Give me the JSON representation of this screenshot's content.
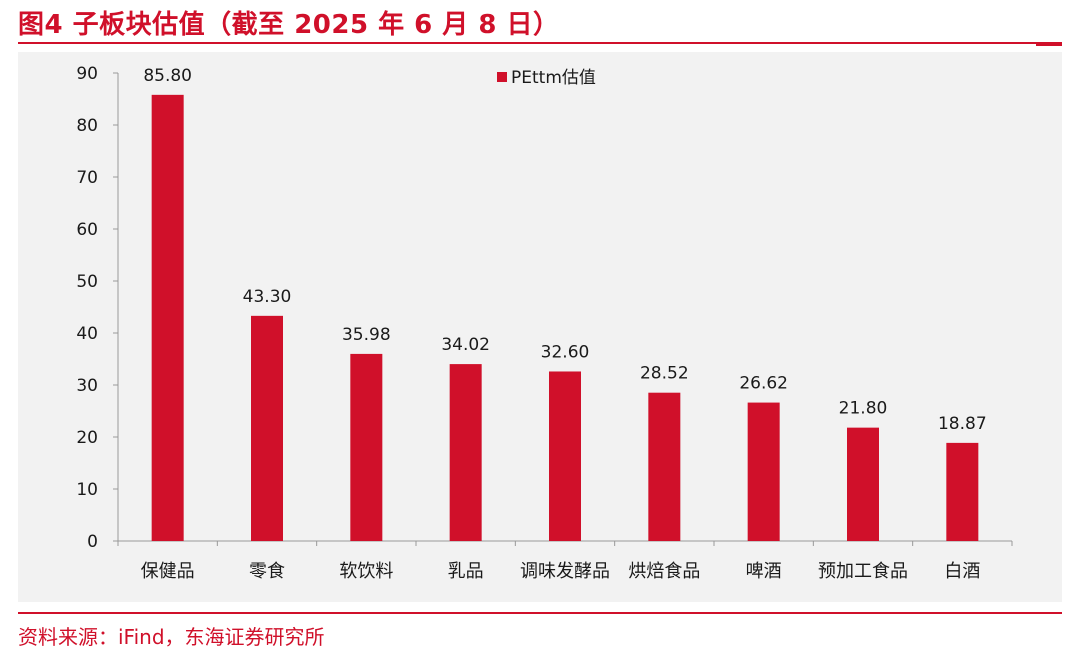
{
  "figure": {
    "title": "图4  子板块估值（截至 2025 年 6 月 8 日）",
    "source": "资料来源：iFind，东海证券研究所"
  },
  "colors": {
    "accent": "#d0102a",
    "bar": "#d0102a",
    "plot_background": "#f2f2f2",
    "axis": "#999999",
    "text": "#1a1a1a"
  },
  "chart_data": {
    "type": "bar",
    "title": "",
    "xlabel": "",
    "ylabel": "",
    "ylim": [
      0,
      90
    ],
    "yticks": [
      0,
      10,
      20,
      30,
      40,
      50,
      60,
      70,
      80,
      90
    ],
    "grid": false,
    "legend": "top-center",
    "categories": [
      "保健品",
      "零食",
      "软饮料",
      "乳品",
      "调味发酵品",
      "烘焙食品",
      "啤酒",
      "预加工食品",
      "白酒"
    ],
    "series": [
      {
        "name": "PEttm估值",
        "values": [
          85.8,
          43.3,
          35.98,
          34.02,
          32.6,
          28.52,
          26.62,
          21.8,
          18.87
        ],
        "labels": [
          "85.80",
          "43.30",
          "35.98",
          "34.02",
          "32.60",
          "28.52",
          "26.62",
          "21.80",
          "18.87"
        ]
      }
    ]
  }
}
